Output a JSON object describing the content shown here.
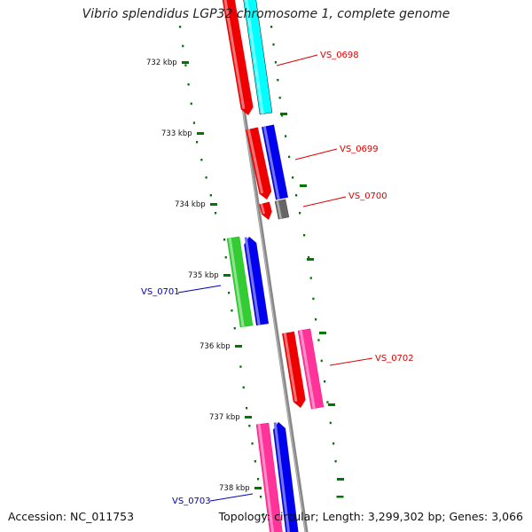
{
  "title": "Vibrio splendidus LGP32 chromosome 1, complete genome",
  "accession": "Accession: NC_011753",
  "topology": "Topology: circular; Length: 3,299,302 bp; Genes: 3,066",
  "kbp_labels": [
    "732 kbp",
    "733 kbp",
    "734 kbp",
    "735 kbp",
    "736 kbp",
    "737 kbp",
    "738 kbp"
  ],
  "gene_labels": [
    {
      "id": "VS_0698",
      "color": "#dd0000"
    },
    {
      "id": "VS_0699",
      "color": "#dd0000"
    },
    {
      "id": "VS_0700",
      "color": "#dd0000"
    },
    {
      "id": "VS_0701",
      "color": "#0000bb"
    },
    {
      "id": "VS_0702",
      "color": "#dd0000"
    },
    {
      "id": "VS_0703",
      "color": "#0000bb"
    }
  ],
  "colors": {
    "red": "#ee0000",
    "cyan": "#00ffff",
    "blue": "#0000ee",
    "green": "#33cc33",
    "pink": "#ff3399",
    "grey": "#666666",
    "tick": "#007700",
    "backbone": "#888888"
  }
}
